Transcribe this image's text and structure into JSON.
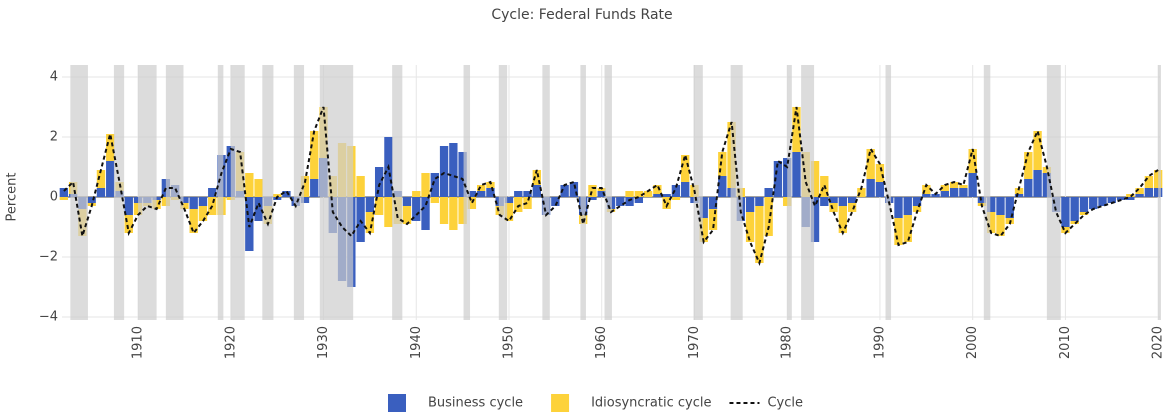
{
  "chart_data": {
    "type": "bar",
    "title": "Cycle: Federal Funds Rate",
    "y_label": "Percent",
    "x": [
      1902,
      1903,
      1904,
      1905,
      1906,
      1907,
      1908,
      1909,
      1910,
      1911,
      1912,
      1913,
      1914,
      1915,
      1916,
      1917,
      1918,
      1919,
      1920,
      1921,
      1922,
      1923,
      1924,
      1925,
      1926,
      1927,
      1928,
      1929,
      1930,
      1931,
      1932,
      1933,
      1934,
      1935,
      1936,
      1937,
      1938,
      1939,
      1940,
      1941,
      1942,
      1943,
      1944,
      1945,
      1946,
      1947,
      1948,
      1949,
      1950,
      1951,
      1952,
      1953,
      1954,
      1955,
      1956,
      1957,
      1958,
      1959,
      1960,
      1961,
      1962,
      1963,
      1964,
      1965,
      1966,
      1967,
      1968,
      1969,
      1970,
      1971,
      1972,
      1973,
      1974,
      1975,
      1976,
      1977,
      1978,
      1979,
      1980,
      1981,
      1982,
      1983,
      1984,
      1985,
      1986,
      1987,
      1988,
      1989,
      1990,
      1991,
      1992,
      1993,
      1994,
      1995,
      1996,
      1997,
      1998,
      1999,
      2000,
      2001,
      2002,
      2003,
      2004,
      2005,
      2006,
      2007,
      2008,
      2009,
      2010,
      2011,
      2012,
      2013,
      2014,
      2015,
      2016,
      2017,
      2018,
      2019,
      2020
    ],
    "series": [
      {
        "name": "Business cycle",
        "color": "#3a5fbf",
        "values": [
          0.3,
          0.1,
          -0.4,
          -0.2,
          0.3,
          1.2,
          0.2,
          -0.6,
          -0.2,
          -0.2,
          -0.1,
          0.6,
          0.4,
          -0.2,
          -0.4,
          -0.3,
          0.3,
          1.4,
          1.7,
          0.2,
          -1.8,
          -0.8,
          -0.3,
          -0.1,
          0.2,
          -0.3,
          -0.2,
          0.6,
          1.3,
          -1.2,
          -2.8,
          -3.0,
          -1.5,
          -0.5,
          1.0,
          2.0,
          0.2,
          -0.3,
          -0.8,
          -1.1,
          0.8,
          1.7,
          1.8,
          1.5,
          0.2,
          0.2,
          0.3,
          -0.3,
          -0.2,
          0.2,
          0.2,
          0.4,
          -0.6,
          -0.3,
          0.4,
          0.5,
          -0.6,
          -0.1,
          0.2,
          -0.4,
          -0.3,
          -0.3,
          -0.2,
          0.0,
          0.1,
          0.1,
          0.4,
          0.5,
          -0.2,
          -0.7,
          -0.4,
          0.7,
          0.3,
          -0.8,
          -0.5,
          -0.3,
          0.3,
          1.2,
          1.3,
          1.5,
          -1.0,
          -1.5,
          -0.3,
          -0.2,
          -0.3,
          -0.2,
          0.0,
          0.6,
          0.5,
          -0.2,
          -0.7,
          -0.6,
          -0.3,
          0.1,
          0.1,
          0.2,
          0.3,
          0.3,
          0.8,
          -0.2,
          -0.5,
          -0.6,
          -0.7,
          0.1,
          0.6,
          0.9,
          0.8,
          -0.5,
          -1.0,
          -0.8,
          -0.5,
          -0.4,
          -0.3,
          -0.2,
          -0.1,
          -0.1,
          0.1,
          0.3,
          0.3
        ]
      },
      {
        "name": "Idiosyncratic cycle",
        "color": "#fdd23a",
        "values": [
          -0.1,
          0.4,
          -0.9,
          -0.1,
          0.6,
          0.9,
          0.3,
          -0.6,
          -0.4,
          -0.1,
          -0.3,
          -0.3,
          -0.1,
          -0.2,
          -0.8,
          -0.5,
          -0.6,
          -0.6,
          -0.1,
          1.3,
          0.8,
          0.6,
          -0.6,
          0.1,
          0.0,
          0.0,
          0.7,
          1.6,
          1.7,
          0.7,
          1.8,
          1.7,
          0.7,
          -0.7,
          -0.6,
          -1.0,
          -0.9,
          -0.6,
          0.2,
          0.8,
          -0.2,
          -0.9,
          -1.1,
          -0.9,
          -0.4,
          0.2,
          0.2,
          -0.3,
          -0.6,
          -0.5,
          -0.4,
          0.5,
          0.0,
          0.0,
          0.0,
          0.0,
          -0.3,
          0.4,
          0.1,
          -0.1,
          0.0,
          0.2,
          0.2,
          0.2,
          0.3,
          -0.4,
          -0.1,
          0.9,
          0.4,
          -0.8,
          -0.7,
          0.8,
          2.2,
          0.3,
          -1.0,
          -1.9,
          -1.3,
          0.0,
          -0.3,
          1.5,
          1.5,
          1.2,
          0.7,
          -0.3,
          -0.9,
          -0.3,
          0.3,
          1.0,
          0.6,
          0.0,
          -0.9,
          -0.9,
          -0.2,
          0.3,
          0.0,
          0.2,
          0.2,
          0.1,
          0.8,
          -0.1,
          -0.7,
          -0.7,
          -0.2,
          0.2,
          0.9,
          1.3,
          0.2,
          0.0,
          -0.2,
          -0.1,
          -0.1,
          0.0,
          0.0,
          0.0,
          0.0,
          0.1,
          0.2,
          0.4,
          0.6
        ]
      },
      {
        "name": "Cycle",
        "type": "line",
        "color": "#111111",
        "values": [
          0.2,
          0.5,
          -1.3,
          -0.3,
          0.9,
          2.1,
          0.5,
          -1.2,
          -0.6,
          -0.3,
          -0.4,
          0.3,
          0.3,
          -0.4,
          -1.2,
          -0.8,
          -0.3,
          0.8,
          1.6,
          1.5,
          -1.0,
          -0.2,
          -0.9,
          0.0,
          0.2,
          -0.3,
          0.5,
          2.2,
          3.0,
          -0.5,
          -1.0,
          -1.3,
          -0.8,
          -1.2,
          0.4,
          1.0,
          -0.7,
          -0.9,
          -0.6,
          -0.3,
          0.6,
          0.8,
          0.7,
          0.6,
          -0.2,
          0.4,
          0.5,
          -0.6,
          -0.8,
          -0.3,
          -0.2,
          0.9,
          -0.6,
          -0.3,
          0.4,
          0.5,
          -0.9,
          0.3,
          0.3,
          -0.5,
          -0.3,
          -0.1,
          0.0,
          0.2,
          0.4,
          -0.3,
          0.3,
          1.4,
          0.2,
          -1.5,
          -1.1,
          1.5,
          2.5,
          -0.5,
          -1.5,
          -2.2,
          -1.0,
          1.2,
          1.0,
          3.0,
          0.5,
          -0.3,
          0.4,
          -0.5,
          -1.2,
          -0.5,
          0.3,
          1.6,
          1.1,
          -0.2,
          -1.6,
          -1.5,
          -0.5,
          0.4,
          0.1,
          0.4,
          0.5,
          0.4,
          1.6,
          -0.3,
          -1.2,
          -1.3,
          -0.9,
          0.3,
          1.5,
          2.2,
          1.0,
          -0.5,
          -1.2,
          -0.9,
          -0.6,
          -0.4,
          -0.3,
          -0.2,
          -0.1,
          0.0,
          0.3,
          0.7,
          0.9
        ]
      }
    ],
    "shaded_periods": [
      [
        1902.7,
        1904.6
      ],
      [
        1907.4,
        1908.5
      ],
      [
        1910.0,
        1912.0
      ],
      [
        1913.0,
        1914.9
      ],
      [
        1918.6,
        1919.2
      ],
      [
        1920.0,
        1921.5
      ],
      [
        1923.4,
        1924.6
      ],
      [
        1926.8,
        1927.9
      ],
      [
        1929.6,
        1933.2
      ],
      [
        1937.4,
        1938.5
      ],
      [
        1945.1,
        1945.8
      ],
      [
        1948.9,
        1949.8
      ],
      [
        1953.6,
        1954.4
      ],
      [
        1957.7,
        1958.3
      ],
      [
        1960.3,
        1961.1
      ],
      [
        1969.9,
        1970.9
      ],
      [
        1973.9,
        1975.2
      ],
      [
        1980.0,
        1980.5
      ],
      [
        1981.5,
        1982.9
      ],
      [
        1990.6,
        1991.2
      ],
      [
        2001.2,
        2001.9
      ],
      [
        2008.0,
        2009.5
      ],
      [
        2020.0,
        2020.3
      ]
    ],
    "xlim": [
      1901.8,
      2020.2
    ],
    "ylim": [
      -4.1,
      4.4
    ],
    "xticks": [
      1910,
      1920,
      1930,
      1940,
      1950,
      1960,
      1970,
      1980,
      1990,
      2000,
      2010,
      2020
    ],
    "yticks": [
      {
        "value": -4,
        "label": "−4"
      },
      {
        "value": -2,
        "label": "−2"
      },
      0,
      2,
      4
    ],
    "grid": true
  }
}
